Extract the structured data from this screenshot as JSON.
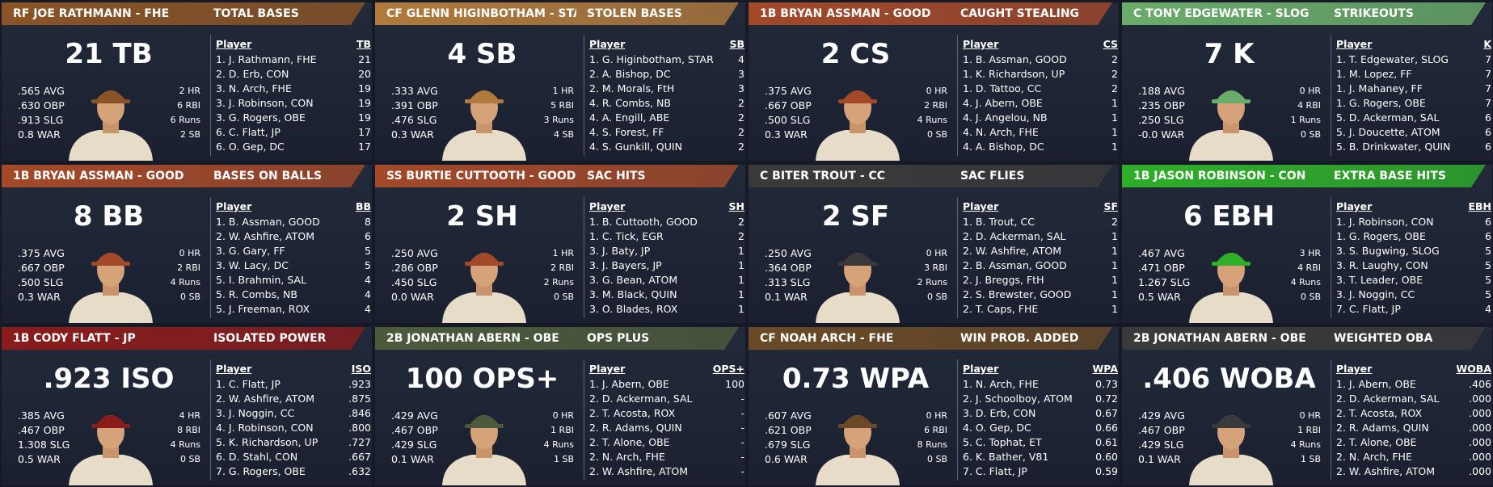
{
  "panels": [
    {
      "color": "#8a5426",
      "header": {
        "player": "RF JOE RATHMANN - FHE",
        "stat": "TOTAL BASES"
      },
      "big": "21 TB",
      "left_stats": [
        ".565 AVG",
        ".630 OBP",
        ".913 SLG",
        "0.8 WAR"
      ],
      "right_stats": [
        "2 HR",
        "6 RBI",
        "6 Runs",
        "2 SB"
      ],
      "table": {
        "columns": [
          "Player",
          "TB"
        ],
        "rows": [
          [
            "1. J. Rathmann, FHE",
            "21"
          ],
          [
            "2. D. Erb, CON",
            "20"
          ],
          [
            "3. N. Arch, FHE",
            "19"
          ],
          [
            "3. J. Robinson, CON",
            "19"
          ],
          [
            "3. G. Rogers, OBE",
            "19"
          ],
          [
            "6. C. Flatt, JP",
            "17"
          ],
          [
            "6. O. Gep, DC",
            "17"
          ]
        ]
      }
    },
    {
      "color": "#b07a3c",
      "header": {
        "player": "CF GLENN HIGINBOTHAM - STAR",
        "stat": "STOLEN BASES"
      },
      "big": "4 SB",
      "left_stats": [
        ".333 AVG",
        ".391 OBP",
        ".476 SLG",
        "0.3 WAR"
      ],
      "right_stats": [
        "1 HR",
        "5 RBI",
        "3 Runs",
        "4 SB"
      ],
      "table": {
        "columns": [
          "Player",
          "SB"
        ],
        "rows": [
          [
            "1. G. Higinbotham, STAR",
            "4"
          ],
          [
            "2. A. Bishop, DC",
            "3"
          ],
          [
            "2. M. Morals, FtH",
            "3"
          ],
          [
            "4. R. Combs, NB",
            "2"
          ],
          [
            "4. A. Engill, ABE",
            "2"
          ],
          [
            "4. S. Forest, FF",
            "2"
          ],
          [
            "4. S. Gunkill, QUIN",
            "2"
          ]
        ]
      }
    },
    {
      "color": "#a3492a",
      "header": {
        "player": "1B BRYAN ASSMAN - GOOD",
        "stat": "CAUGHT STEALING"
      },
      "big": "2 CS",
      "left_stats": [
        ".375 AVG",
        ".667 OBP",
        ".500 SLG",
        "0.3 WAR"
      ],
      "right_stats": [
        "0 HR",
        "2 RBI",
        "4 Runs",
        "0 SB"
      ],
      "table": {
        "columns": [
          "Player",
          "CS"
        ],
        "rows": [
          [
            "1. B. Assman, GOOD",
            "2"
          ],
          [
            "1. K. Richardson, UP",
            "2"
          ],
          [
            "1. D. Tattoo, CC",
            "2"
          ],
          [
            "4. J. Abern, OBE",
            "1"
          ],
          [
            "4. J. Angelou, NB",
            "1"
          ],
          [
            "4. N. Arch, FHE",
            "1"
          ],
          [
            "4. A. Bishop, DC",
            "1"
          ]
        ]
      }
    },
    {
      "color": "#6aac6a",
      "header": {
        "player": "C TONY EDGEWATER - SLOG",
        "stat": "STRIKEOUTS"
      },
      "big": "7 K",
      "left_stats": [
        ".188 AVG",
        ".235 OBP",
        ".250 SLG",
        "-0.0 WAR"
      ],
      "right_stats": [
        "0 HR",
        "4 RBI",
        "1 Runs",
        "0 SB"
      ],
      "table": {
        "columns": [
          "Player",
          "K"
        ],
        "rows": [
          [
            "1. T. Edgewater, SLOG",
            "7"
          ],
          [
            "1. M. Lopez, FF",
            "7"
          ],
          [
            "1. J. Mahaney, FF",
            "7"
          ],
          [
            "1. G. Rogers, OBE",
            "7"
          ],
          [
            "5. D. Ackerman, SAL",
            "6"
          ],
          [
            "5. J. Doucette, ATOM",
            "6"
          ],
          [
            "5. B. Drinkwater, QUIN",
            "6"
          ]
        ]
      }
    },
    {
      "color": "#a3492a",
      "header": {
        "player": "1B BRYAN ASSMAN - GOOD",
        "stat": "BASES ON BALLS"
      },
      "big": "8 BB",
      "left_stats": [
        ".375 AVG",
        ".667 OBP",
        ".500 SLG",
        "0.3 WAR"
      ],
      "right_stats": [
        "0 HR",
        "2 RBI",
        "4 Runs",
        "0 SB"
      ],
      "table": {
        "columns": [
          "Player",
          "BB"
        ],
        "rows": [
          [
            "1. B. Assman, GOOD",
            "8"
          ],
          [
            "2. W. Ashfire, ATOM",
            "6"
          ],
          [
            "3. G. Gary, FF",
            "5"
          ],
          [
            "3. W. Lacy, DC",
            "5"
          ],
          [
            "5. I. Brahmin, SAL",
            "4"
          ],
          [
            "5. R. Combs, NB",
            "4"
          ],
          [
            "5. J. Freeman, ROX",
            "4"
          ]
        ]
      }
    },
    {
      "color": "#a3492a",
      "header": {
        "player": "SS BURTIE CUTTOOTH - GOOD",
        "stat": "SAC HITS"
      },
      "big": "2 SH",
      "left_stats": [
        ".250 AVG",
        ".286 OBP",
        ".450 SLG",
        "0.0 WAR"
      ],
      "right_stats": [
        "1 HR",
        "2 RBI",
        "2 Runs",
        "0 SB"
      ],
      "table": {
        "columns": [
          "Player",
          "SH"
        ],
        "rows": [
          [
            "1. B. Cuttooth, GOOD",
            "2"
          ],
          [
            "1. C. Tick, EGR",
            "2"
          ],
          [
            "3. J. Baty, JP",
            "1"
          ],
          [
            "3. J. Bayers, JP",
            "1"
          ],
          [
            "3. G. Bean, ATOM",
            "1"
          ],
          [
            "3. M. Black, QUIN",
            "1"
          ],
          [
            "3. O. Blades, ROX",
            "1"
          ]
        ]
      }
    },
    {
      "color": "#3b3a3a",
      "header": {
        "player": "C BITER TROUT - CC",
        "stat": "SAC FLIES"
      },
      "big": "2 SF",
      "left_stats": [
        ".250 AVG",
        ".364 OBP",
        ".313 SLG",
        "0.1 WAR"
      ],
      "right_stats": [
        "0 HR",
        "3 RBI",
        "2 Runs",
        "0 SB"
      ],
      "table": {
        "columns": [
          "Player",
          "SF"
        ],
        "rows": [
          [
            "1. B. Trout, CC",
            "2"
          ],
          [
            "2. D. Ackerman, SAL",
            "1"
          ],
          [
            "2. W. Ashfire, ATOM",
            "1"
          ],
          [
            "2. B. Assman, GOOD",
            "1"
          ],
          [
            "2. J. Breggs, FtH",
            "1"
          ],
          [
            "2. S. Brewster, GOOD",
            "1"
          ],
          [
            "2. T. Caps, FHE",
            "1"
          ]
        ]
      }
    },
    {
      "color": "#2fae2a",
      "header": {
        "player": "1B JASON ROBINSON - CON",
        "stat": "EXTRA BASE HITS"
      },
      "big": "6 EBH",
      "left_stats": [
        ".467 AVG",
        ".471 OBP",
        "1.267 SLG",
        "0.5 WAR"
      ],
      "right_stats": [
        "3 HR",
        "4 RBI",
        "4 Runs",
        "0 SB"
      ],
      "table": {
        "columns": [
          "Player",
          "EBH"
        ],
        "rows": [
          [
            "1. J. Robinson, CON",
            "6"
          ],
          [
            "1. G. Rogers, OBE",
            "6"
          ],
          [
            "3. S. Bugwing, SLOG",
            "5"
          ],
          [
            "3. R. Laughy, CON",
            "5"
          ],
          [
            "3. T. Leader, OBE",
            "5"
          ],
          [
            "3. J. Noggin, CC",
            "5"
          ],
          [
            "7. C. Flatt, JP",
            "4"
          ]
        ]
      }
    },
    {
      "color": "#8a1c1c",
      "header": {
        "player": "1B CODY FLATT - JP",
        "stat": "ISOLATED POWER"
      },
      "big": ".923 ISO",
      "left_stats": [
        ".385 AVG",
        ".467 OBP",
        "1.308 SLG",
        "0.5 WAR"
      ],
      "right_stats": [
        "4 HR",
        "8 RBI",
        "4 Runs",
        "0 SB"
      ],
      "table": {
        "columns": [
          "Player",
          "ISO"
        ],
        "rows": [
          [
            "1. C. Flatt, JP",
            ".923"
          ],
          [
            "2. W. Ashfire, ATOM",
            ".875"
          ],
          [
            "3. J. Noggin, CC",
            ".846"
          ],
          [
            "4. J. Robinson, CON",
            ".800"
          ],
          [
            "5. K. Richardson, UP",
            ".727"
          ],
          [
            "6. D. Stahl, CON",
            ".667"
          ],
          [
            "7. G. Rogers, OBE",
            ".632"
          ]
        ]
      }
    },
    {
      "color": "#4c5a3c",
      "header": {
        "player": "2B JONATHAN ABERN - OBE",
        "stat": "OPS PLUS"
      },
      "big": "100 OPS+",
      "left_stats": [
        ".429 AVG",
        ".467 OBP",
        ".429 SLG",
        "0.1 WAR"
      ],
      "right_stats": [
        "0 HR",
        "1 RBI",
        "4 Runs",
        "1 SB"
      ],
      "table": {
        "columns": [
          "Player",
          "OPS+"
        ],
        "rows": [
          [
            "1. J. Abern, OBE",
            "100"
          ],
          [
            "2. D. Ackerman, SAL",
            "-"
          ],
          [
            "2. T. Acosta, ROX",
            "-"
          ],
          [
            "2. R. Adams, QUIN",
            "-"
          ],
          [
            "2. T. Alone, OBE",
            "-"
          ],
          [
            "2. N. Arch, FHE",
            "-"
          ],
          [
            "2. W. Ashfire, ATOM",
            "-"
          ]
        ]
      }
    },
    {
      "color": "#6a4a26",
      "header": {
        "player": "CF NOAH ARCH - FHE",
        "stat": "WIN PROB. ADDED"
      },
      "big": "0.73 WPA",
      "left_stats": [
        ".607 AVG",
        ".621 OBP",
        ".679 SLG",
        "0.6 WAR"
      ],
      "right_stats": [
        "0 HR",
        "6 RBI",
        "8 Runs",
        "0 SB"
      ],
      "table": {
        "columns": [
          "Player",
          "WPA"
        ],
        "rows": [
          [
            "1. N. Arch, FHE",
            "0.73"
          ],
          [
            "2. J. Schoolboy, ATOM",
            "0.72"
          ],
          [
            "3. D. Erb, CON",
            "0.67"
          ],
          [
            "4. O. Gep, DC",
            "0.66"
          ],
          [
            "5. C. Tophat, ET",
            "0.61"
          ],
          [
            "6. K. Bather, V81",
            "0.60"
          ],
          [
            "7. C. Flatt, JP",
            "0.59"
          ]
        ]
      }
    },
    {
      "color": "#3b3a3a",
      "header": {
        "player": "2B JONATHAN ABERN - OBE",
        "stat": "WEIGHTED OBA"
      },
      "big": ".406 WOBA",
      "left_stats": [
        ".429 AVG",
        ".467 OBP",
        ".429 SLG",
        "0.1 WAR"
      ],
      "right_stats": [
        "0 HR",
        "1 RBI",
        "4 Runs",
        "1 SB"
      ],
      "table": {
        "columns": [
          "Player",
          "WOBA"
        ],
        "rows": [
          [
            "1. J. Abern, OBE",
            ".406"
          ],
          [
            "2. D. Ackerman, SAL",
            ".000"
          ],
          [
            "2. T. Acosta, ROX",
            ".000"
          ],
          [
            "2. R. Adams, QUIN",
            ".000"
          ],
          [
            "2. T. Alone, OBE",
            ".000"
          ],
          [
            "2. N. Arch, FHE",
            ".000"
          ],
          [
            "2. W. Ashfire, ATOM",
            ".000"
          ]
        ]
      }
    }
  ]
}
